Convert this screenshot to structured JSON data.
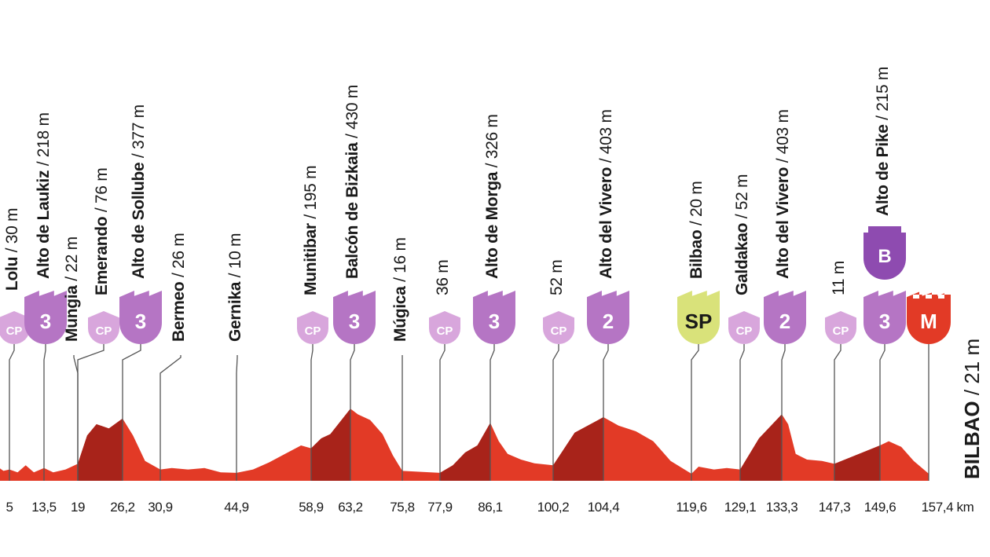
{
  "chart_data": {
    "type": "area",
    "title": "",
    "unit_label": "km",
    "elevation_fill_colors": {
      "main": "#e23a26",
      "climb": "#a8231a"
    },
    "profile": [
      [
        0,
        30
      ],
      [
        2,
        65
      ],
      [
        4,
        35
      ],
      [
        5,
        40
      ],
      [
        7,
        30
      ],
      [
        9,
        55
      ],
      [
        11,
        30
      ],
      [
        13.5,
        45
      ],
      [
        15,
        30
      ],
      [
        17,
        40
      ],
      [
        19,
        60
      ],
      [
        20.5,
        160
      ],
      [
        22,
        200
      ],
      [
        24,
        185
      ],
      [
        26.2,
        220
      ],
      [
        27.5,
        160
      ],
      [
        29,
        70
      ],
      [
        30.9,
        40
      ],
      [
        33,
        45
      ],
      [
        36,
        40
      ],
      [
        39,
        45
      ],
      [
        42,
        30
      ],
      [
        44.9,
        28
      ],
      [
        48,
        40
      ],
      [
        51,
        65
      ],
      [
        54,
        95
      ],
      [
        57,
        125
      ],
      [
        58.9,
        115
      ],
      [
        60,
        150
      ],
      [
        61,
        165
      ],
      [
        63.2,
        255
      ],
      [
        65,
        235
      ],
      [
        68,
        215
      ],
      [
        71,
        165
      ],
      [
        73.5,
        90
      ],
      [
        75.8,
        35
      ],
      [
        77.9,
        28
      ],
      [
        80,
        55
      ],
      [
        82,
        100
      ],
      [
        84,
        125
      ],
      [
        86.1,
        205
      ],
      [
        88,
        140
      ],
      [
        90,
        95
      ],
      [
        93,
        75
      ],
      [
        96,
        62
      ],
      [
        100.2,
        55
      ],
      [
        102,
        170
      ],
      [
        104.4,
        225
      ],
      [
        107,
        195
      ],
      [
        110,
        175
      ],
      [
        113,
        140
      ],
      [
        116,
        70
      ],
      [
        119.6,
        25
      ],
      [
        121,
        50
      ],
      [
        124,
        40
      ],
      [
        126.5,
        45
      ],
      [
        129.1,
        40
      ],
      [
        131,
        150
      ],
      [
        133.3,
        235
      ],
      [
        135,
        200
      ],
      [
        137,
        95
      ],
      [
        140,
        75
      ],
      [
        144,
        70
      ],
      [
        147.3,
        60
      ],
      [
        149.6,
        125
      ],
      [
        151,
        140
      ],
      [
        153,
        120
      ],
      [
        155,
        70
      ],
      [
        157.4,
        25
      ]
    ],
    "climb_segments": [
      [
        19,
        26.2
      ],
      [
        58.9,
        63.2
      ],
      [
        77.9,
        86.1
      ],
      [
        100.2,
        104.4
      ],
      [
        129.1,
        133.3
      ],
      [
        147.3,
        149.6
      ]
    ],
    "x_ticks": [
      "5",
      "13,5",
      "19",
      "26,2",
      "30,9",
      "44,9",
      "58,9",
      "63,2",
      "75,8",
      "77,9",
      "86,1",
      "100,2",
      "104,4",
      "119,6",
      "129,1",
      "133,3",
      "147,3",
      "149,6",
      "157,4 km"
    ],
    "points": [
      {
        "name": "Lolu",
        "elev": "30 m",
        "km": "5",
        "marker": "CP",
        "cat": "cp",
        "label_bold": true
      },
      {
        "name": "Alto de Laukiz",
        "elev": "218 m",
        "km": "13,5",
        "marker": "3",
        "cat": "climb",
        "label_bold": true
      },
      {
        "name": "Mungia",
        "elev": "22 m",
        "km": "19",
        "marker": "",
        "cat": "none",
        "label_bold": true
      },
      {
        "name": "Emerando",
        "elev": "76 m",
        "km": "19",
        "marker": "CP",
        "cat": "cp",
        "label_bold": true
      },
      {
        "name": "Alto de Sollube",
        "elev": "377 m",
        "km": "26,2",
        "marker": "3",
        "cat": "climb",
        "label_bold": true
      },
      {
        "name": "Bermeo",
        "elev": "26 m",
        "km": "30,9",
        "marker": "",
        "cat": "none",
        "label_bold": true
      },
      {
        "name": "Gernika",
        "elev": "10 m",
        "km": "44,9",
        "marker": "",
        "cat": "none",
        "label_bold": true
      },
      {
        "name": "Munitibar",
        "elev": "195 m",
        "km": "58,9",
        "marker": "CP",
        "cat": "cp",
        "label_bold": true
      },
      {
        "name": "Balcón de Bizkaia",
        "elev": "430 m",
        "km": "63,2",
        "marker": "3",
        "cat": "climb",
        "label_bold": true
      },
      {
        "name": "Múgica",
        "elev": "16 m",
        "km": "75,8",
        "marker": "",
        "cat": "none",
        "label_bold": true
      },
      {
        "name": "",
        "elev": "36 m",
        "km": "77,9",
        "marker": "CP",
        "cat": "cp",
        "label_bold": false
      },
      {
        "name": "Alto de Morga",
        "elev": "326 m",
        "km": "86,1",
        "marker": "3",
        "cat": "climb",
        "label_bold": true
      },
      {
        "name": "",
        "elev": "52 m",
        "km": "100,2",
        "marker": "CP",
        "cat": "cp",
        "label_bold": false
      },
      {
        "name": "Alto del Vivero",
        "elev": "403 m",
        "km": "104,4",
        "marker": "2",
        "cat": "climb",
        "label_bold": true
      },
      {
        "name": "Bilbao",
        "elev": "20 m",
        "km": "119,6",
        "marker": "SP",
        "cat": "sprint",
        "label_bold": true
      },
      {
        "name": "Galdakao",
        "elev": "52 m",
        "km": "129,1",
        "marker": "CP",
        "cat": "cp",
        "label_bold": true
      },
      {
        "name": "Alto del Vivero",
        "elev": "403 m",
        "km": "133,3",
        "marker": "2",
        "cat": "climb",
        "label_bold": true
      },
      {
        "name": "",
        "elev": "11 m",
        "km": "147,3",
        "marker": "CP",
        "cat": "cp",
        "label_bold": false
      },
      {
        "name": "Alto de Pike",
        "elev": "215 m",
        "km": "149,6",
        "marker": "3",
        "cat": "climb",
        "label_bold": true,
        "bonus_marker": "B"
      },
      {
        "name": "",
        "elev": "",
        "km": "157,4",
        "marker": "M",
        "cat": "finish",
        "label_bold": false
      }
    ],
    "finish": {
      "name": "BILBAO",
      "elev": "21 m"
    }
  },
  "colors": {
    "climb": "#b575c4",
    "cp": "#d8a6dc",
    "sprint": "#d9e27a",
    "finish": "#e23a26",
    "bonus": "#8e4bb0",
    "line": "#555555"
  },
  "icons": {
    "climb": "mountain-badge-icon",
    "cp": "checkpoint-badge-icon",
    "sprint": "sprint-badge-icon",
    "finish": "finish-flag-icon",
    "bonus": "bonus-badge-icon"
  }
}
